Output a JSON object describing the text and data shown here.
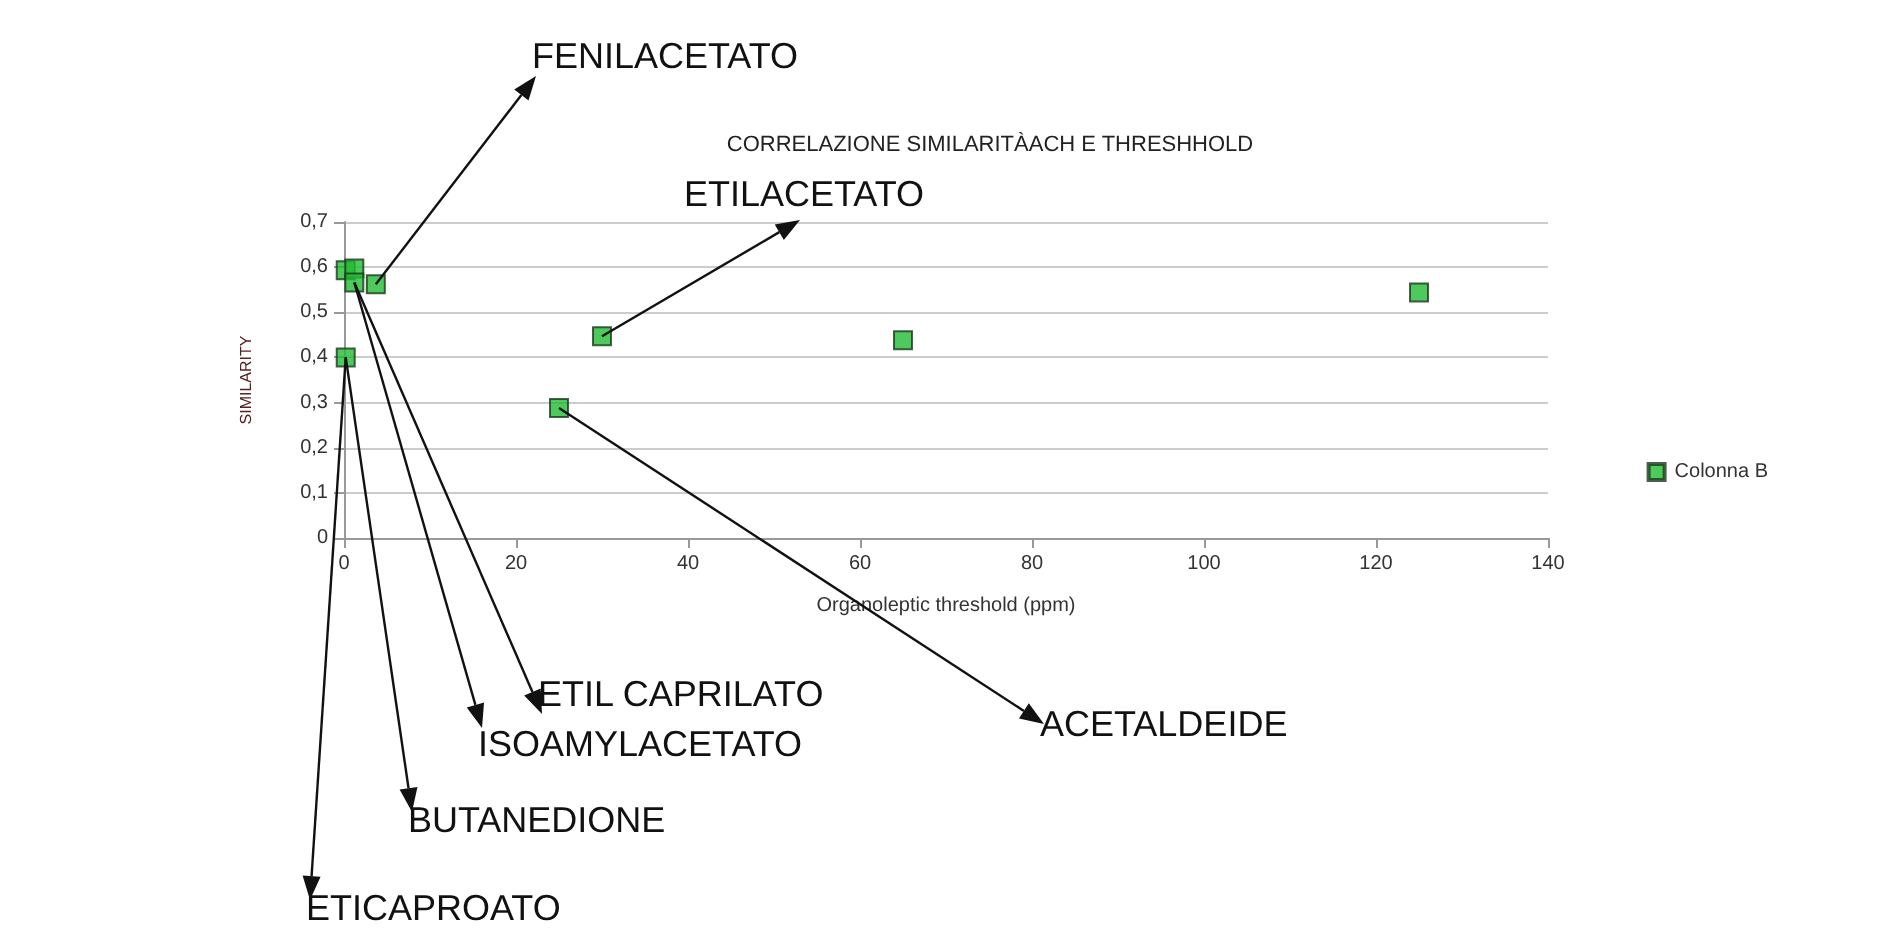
{
  "chart_data": {
    "type": "scatter",
    "title": "CORRELAZIONE SIMILARITÀACH E THRESHHOLD",
    "xlabel": "Organoleptic threshold (ppm)",
    "ylabel": "SIMILARITY",
    "series": [
      {
        "name": "Colonna B",
        "color": "#22bb33",
        "x": [
          0.2,
          1.2,
          1.2,
          3.7,
          0.2,
          25,
          30,
          65,
          125
        ],
        "values": [
          0.593,
          0.597,
          0.566,
          0.562,
          0.4,
          0.288,
          0.447,
          0.438,
          0.544
        ]
      }
    ],
    "xlim": [
      0,
      140
    ],
    "xticks": [
      0,
      20,
      40,
      60,
      80,
      100,
      120,
      140
    ],
    "ylim": [
      0,
      0.7
    ],
    "yticks": [
      0,
      {
        "value": 0.1,
        "label": "0,1"
      },
      {
        "value": 0.2,
        "label": "0,2"
      },
      {
        "value": 0.3,
        "label": "0,3"
      },
      {
        "value": 0.4,
        "label": "0,4"
      },
      {
        "value": 0.5,
        "label": "0,5"
      },
      {
        "value": 0.6,
        "label": "0,6"
      },
      {
        "value": 0.7,
        "label": "0,7"
      }
    ],
    "grid": "y",
    "legend": "right",
    "marker": "square",
    "annotations": [
      {
        "text": "FENILACETATO",
        "x": 3.7,
        "y": 0.562
      },
      {
        "text": "ETILACETATO",
        "x": 30,
        "y": 0.447
      },
      {
        "text": "ACETALDEIDE",
        "x": 25,
        "y": 0.288
      },
      {
        "text": "ETIL CAPRILATO",
        "x": 1.2,
        "y": 0.566
      },
      {
        "text": "ISOAMYLACETATO",
        "x": 1.2,
        "y": 0.566
      },
      {
        "text": "BUTANEDIONE",
        "x": 0.2,
        "y": 0.4
      },
      {
        "text": "ETICAPROATO",
        "x": 0.2,
        "y": 0.4
      }
    ]
  }
}
